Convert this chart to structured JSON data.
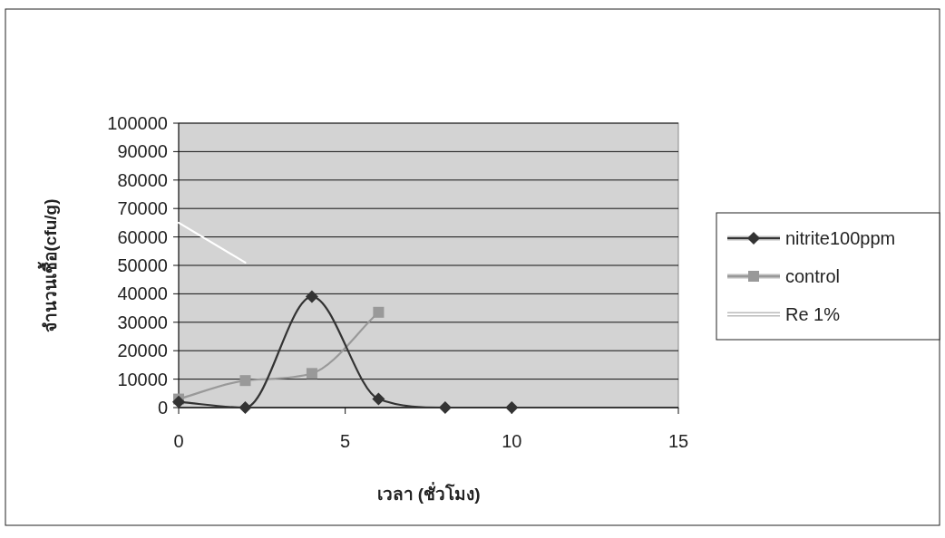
{
  "chart_data": {
    "type": "line",
    "xlabel": "เวลา (ชั่วโมง)",
    "ylabel": "จำนวนเชื้อ(cfu/g)",
    "xlim": [
      0,
      15
    ],
    "xticks": [
      0,
      5,
      10,
      15
    ],
    "ylim": [
      0,
      100000
    ],
    "yticks": [
      0,
      10000,
      20000,
      30000,
      40000,
      50000,
      60000,
      70000,
      80000,
      90000,
      100000
    ],
    "grid": "y",
    "legend": "right",
    "series": [
      {
        "name": "nitrite100ppm",
        "color": "#333333",
        "marker": "diamond",
        "x": [
          0,
          2,
          4,
          6,
          8,
          10
        ],
        "values": [
          2000,
          0,
          39000,
          3000,
          0,
          0
        ]
      },
      {
        "name": "control",
        "color": "#999999",
        "marker": "square",
        "x": [
          0,
          2,
          4,
          6
        ],
        "values": [
          3000,
          9500,
          12000,
          33500
        ]
      },
      {
        "name": "Re 1%",
        "color": "#ffffff",
        "marker": "none",
        "x": [
          0,
          2
        ],
        "values": [
          65000,
          51000
        ]
      }
    ]
  }
}
